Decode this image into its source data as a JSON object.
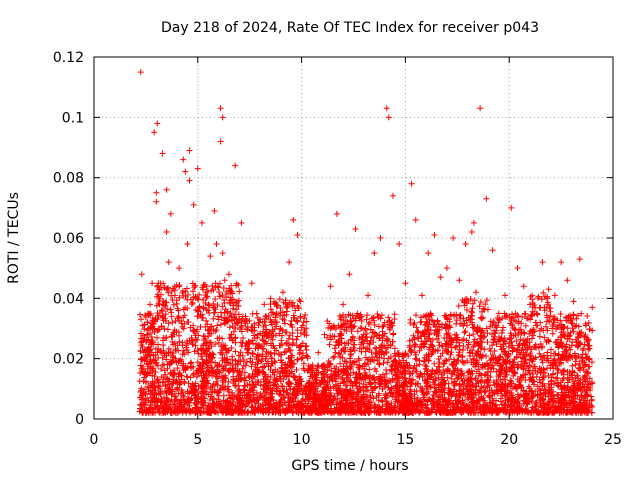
{
  "chart_data": {
    "type": "scatter",
    "title": "Day 218 of 2024, Rate Of TEC Index for receiver p043",
    "xlabel": "GPS time / hours",
    "ylabel": "ROTI / TECUs",
    "xlim": [
      0,
      25
    ],
    "ylim": [
      0,
      0.12
    ],
    "x_ticks": [
      0,
      5,
      10,
      15,
      20,
      25
    ],
    "x_tick_labels": [
      "0",
      "5",
      "10",
      "15",
      "20",
      "25"
    ],
    "y_ticks": [
      0,
      0.02,
      0.04,
      0.06,
      0.08,
      0.1,
      0.12
    ],
    "y_tick_labels": [
      "0",
      "0.02",
      "0.04",
      "0.06",
      "0.08",
      "0.1",
      "0.12"
    ],
    "grid": true,
    "marker": "+",
    "marker_color": "#ff0000",
    "series": [
      {
        "name": "ROTI",
        "x": [
          2.25,
          2.3,
          2.35,
          2.4,
          2.45,
          2.5,
          2.55,
          2.6,
          2.7,
          2.8,
          2.9,
          3.0,
          3.05,
          3.1,
          3.3,
          3.5,
          3.6,
          3.7,
          3.9,
          4.1,
          4.3,
          4.5,
          4.6,
          4.8,
          5.0,
          5.2,
          5.4,
          5.6,
          5.8,
          5.9,
          6.1,
          6.2,
          6.3,
          6.5,
          6.8,
          7.1,
          7.3,
          7.6,
          7.9,
          8.2,
          8.5,
          8.8,
          9.1,
          9.4,
          9.6,
          9.8,
          10.0,
          10.2,
          10.5,
          10.8,
          11.1,
          11.4,
          11.7,
          12.0,
          12.3,
          12.6,
          12.9,
          13.2,
          13.5,
          13.8,
          14.0,
          14.2,
          14.4,
          14.7,
          15.0,
          15.3,
          15.5,
          15.8,
          16.1,
          16.4,
          16.7,
          17.0,
          17.3,
          17.6,
          17.9,
          18.2,
          18.4,
          18.6,
          18.9,
          19.2,
          19.5,
          19.8,
          20.1,
          20.4,
          20.7,
          21.0,
          21.3,
          21.6,
          21.9,
          22.2,
          22.5,
          22.8,
          23.1,
          23.4,
          23.7,
          24.0,
          2.9,
          3.5,
          4.4,
          5.0,
          6.1,
          14.1,
          18.3,
          6.2,
          4.6,
          3.0
        ],
        "y": [
          0.115,
          0.048,
          0.031,
          0.022,
          0.015,
          0.012,
          0.028,
          0.035,
          0.038,
          0.045,
          0.03,
          0.072,
          0.098,
          0.045,
          0.088,
          0.062,
          0.052,
          0.068,
          0.041,
          0.05,
          0.086,
          0.058,
          0.079,
          0.071,
          0.036,
          0.065,
          0.042,
          0.054,
          0.069,
          0.058,
          0.103,
          0.055,
          0.046,
          0.048,
          0.084,
          0.065,
          0.034,
          0.045,
          0.028,
          0.038,
          0.04,
          0.035,
          0.042,
          0.052,
          0.066,
          0.061,
          0.02,
          0.024,
          0.014,
          0.022,
          0.028,
          0.044,
          0.068,
          0.038,
          0.048,
          0.063,
          0.03,
          0.041,
          0.055,
          0.06,
          0.032,
          0.1,
          0.074,
          0.058,
          0.045,
          0.078,
          0.066,
          0.041,
          0.055,
          0.061,
          0.047,
          0.05,
          0.06,
          0.046,
          0.058,
          0.062,
          0.042,
          0.103,
          0.073,
          0.056,
          0.035,
          0.041,
          0.07,
          0.05,
          0.044,
          0.038,
          0.031,
          0.052,
          0.043,
          0.041,
          0.052,
          0.046,
          0.039,
          0.053,
          0.031,
          0.037,
          0.095,
          0.076,
          0.082,
          0.083,
          0.092,
          0.103,
          0.065,
          0.1,
          0.089,
          0.075
        ]
      }
    ],
    "dense_band": {
      "description_range_x": [
        2.2,
        24.0
      ],
      "typical_min": 0.002,
      "typical_max": 0.035
    }
  }
}
